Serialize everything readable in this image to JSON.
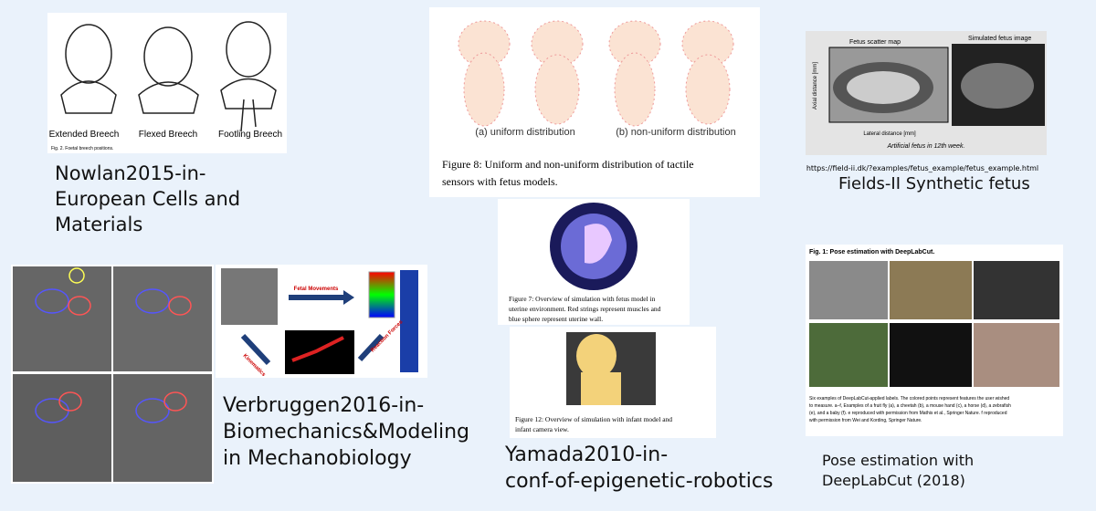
{
  "panels": [
    {
      "figure": {
        "labels": [
          "Extended Breech",
          "Flexed Breech",
          "Footling Breech"
        ],
        "caption": "Fig. 2. Foetal breech positions."
      },
      "caption_lines": [
        "Nowlan2015-in-",
        "European Cells and",
        "Materials"
      ]
    },
    {
      "figure": {
        "labels": [
          "(a) uniform distribution",
          "(b) non-uniform distribution"
        ],
        "caption_lines": [
          "Figure 8: Uniform and non-uniform distribution of tactile",
          "sensors with fetus models."
        ]
      }
    },
    {
      "figure": {
        "left_title": "Fetus scatter map",
        "right_title": "Simulated fetus image",
        "x_label": "Lateral distance [mm]",
        "y_label": "Axial distance [mm]",
        "caption": "Artificial fetus in 12th week."
      },
      "url": "https://field-ii.dk/?examples/fetus_example/fetus_example.html",
      "caption_lines": [
        "Fields-II Synthetic fetus"
      ]
    },
    {
      "figure": {
        "labels": [
          "Fetal Movements",
          "Kinematics",
          "Reaction Forces"
        ]
      },
      "caption_lines": [
        "Verbruggen2016-in-",
        "Biomechanics&Modeling",
        "in Mechanobiology"
      ]
    },
    {
      "figure_top": {
        "caption_lines": [
          "Figure 7: Overview of simulation with fetus model in",
          "uterine environment. Red strings represent muscles and",
          "blue sphere represent uterine wall."
        ]
      },
      "figure_bottom": {
        "caption_lines": [
          "Figure 12: Overview of simulation with infant model and",
          "infant camera view."
        ]
      },
      "caption_lines": [
        "Yamada2010-in-",
        "conf-of-epigenetic-robotics"
      ]
    },
    {
      "figure": {
        "title": "Fig. 1: Pose estimation with DeepLabCut.",
        "caption_lines": [
          "Six examples of DeepLabCut-applied labels. The colored points represent features the user wished",
          "to measure. a–f, Examples of a fruit fly (a), a cheetah (b), a mouse hand (c), a horse (d), a zebrafish",
          "(e), and a baby (f). e reproduced with permission from Mathis et al., Springer Nature. f reproduced",
          "with permission from Wei and Kording, Springer Nature."
        ]
      },
      "caption_lines": [
        "Pose estimation with",
        "DeepLabCut (2018)"
      ]
    }
  ]
}
